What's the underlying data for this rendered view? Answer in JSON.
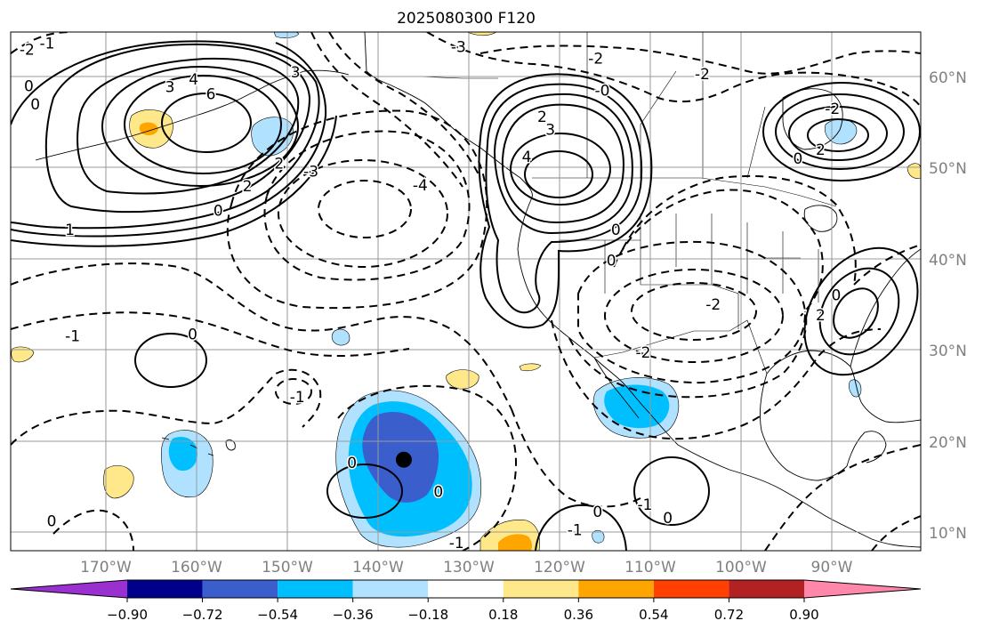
{
  "title": "2025080300 F120",
  "lon_labels": [
    "170°W",
    "160°W",
    "150°W",
    "140°W",
    "130°W",
    "120°W",
    "110°W",
    "100°W",
    "90°W"
  ],
  "lat_labels": [
    "60°N",
    "50°N",
    "40°N",
    "30°N",
    "20°N",
    "10°N"
  ],
  "colorbar": {
    "tick_labels": [
      "−0.90",
      "−0.72",
      "−0.54",
      "−0.36",
      "−0.18",
      "0.18",
      "0.36",
      "0.54",
      "0.72",
      "0.90"
    ],
    "colors": [
      "#9b30d0",
      "#00008b",
      "#3a5fcd",
      "#00bfff",
      "#b0e2ff",
      "#ffffff",
      "#ffe88a",
      "#ffa500",
      "#ff4000",
      "#b22222",
      "#ff88aa"
    ]
  },
  "contour_labels": [
    {
      "text": "-2",
      "lon": -178.2,
      "lat": 63.0
    },
    {
      "text": "-1",
      "lon": -176.0,
      "lat": 63.7
    },
    {
      "text": "0",
      "lon": -178.0,
      "lat": 59.0
    },
    {
      "text": "0",
      "lon": -177.3,
      "lat": 57.0
    },
    {
      "text": "3",
      "lon": -162.5,
      "lat": 58.9
    },
    {
      "text": "4",
      "lon": -159.9,
      "lat": 59.7
    },
    {
      "text": "6",
      "lon": -158.0,
      "lat": 58.1
    },
    {
      "text": "3",
      "lon": -148.7,
      "lat": 60.5
    },
    {
      "text": "2",
      "lon": -150.5,
      "lat": 50.5
    },
    {
      "text": "2",
      "lon": -154.0,
      "lat": 48.0
    },
    {
      "text": "0",
      "lon": -157.2,
      "lat": 45.3
    },
    {
      "text": "1",
      "lon": -173.5,
      "lat": 43.2
    },
    {
      "text": "-3",
      "lon": -147.0,
      "lat": 49.6
    },
    {
      "text": "-4",
      "lon": -135.0,
      "lat": 48.1
    },
    {
      "text": "-3",
      "lon": -130.8,
      "lat": 63.3
    },
    {
      "text": "2",
      "lon": -121.6,
      "lat": 55.6
    },
    {
      "text": "3",
      "lon": -120.7,
      "lat": 54.2
    },
    {
      "text": "4",
      "lon": -123.3,
      "lat": 51.2
    },
    {
      "text": "-2",
      "lon": -115.7,
      "lat": 62.0
    },
    {
      "text": "-0",
      "lon": -115.0,
      "lat": 58.5
    },
    {
      "text": "-2",
      "lon": -104.0,
      "lat": 60.3
    },
    {
      "text": "-2",
      "lon": -89.7,
      "lat": 56.5
    },
    {
      "text": "2",
      "lon": -91.0,
      "lat": 52.0
    },
    {
      "text": "0",
      "lon": -93.5,
      "lat": 51.0
    },
    {
      "text": "0",
      "lon": -113.5,
      "lat": 43.2
    },
    {
      "text": "0",
      "lon": -114.0,
      "lat": 39.8
    },
    {
      "text": "-2",
      "lon": -102.8,
      "lat": 35.0
    },
    {
      "text": "-2",
      "lon": -110.5,
      "lat": 29.7
    },
    {
      "text": "0",
      "lon": -89.3,
      "lat": 36.0
    },
    {
      "text": "2",
      "lon": -91.0,
      "lat": 33.8
    },
    {
      "text": "-1",
      "lon": -173.2,
      "lat": 31.5
    },
    {
      "text": "0",
      "lon": -160.0,
      "lat": 31.7
    },
    {
      "text": "-1",
      "lon": -148.5,
      "lat": 24.8
    },
    {
      "text": "0",
      "lon": -142.5,
      "lat": 17.6
    },
    {
      "text": "0",
      "lon": -133.0,
      "lat": 14.4
    },
    {
      "text": "-1",
      "lon": -118.0,
      "lat": 10.2
    },
    {
      "text": "0",
      "lon": -115.5,
      "lat": 12.2
    },
    {
      "text": "-1",
      "lon": -110.3,
      "lat": 13.0
    },
    {
      "text": "0",
      "lon": -107.8,
      "lat": 11.5
    },
    {
      "text": "0",
      "lon": -175.5,
      "lat": 11.2
    },
    {
      "text": "-1",
      "lon": -131.0,
      "lat": 8.8
    }
  ],
  "storm_center": {
    "lon": -136.8,
    "lat": 18.0
  }
}
